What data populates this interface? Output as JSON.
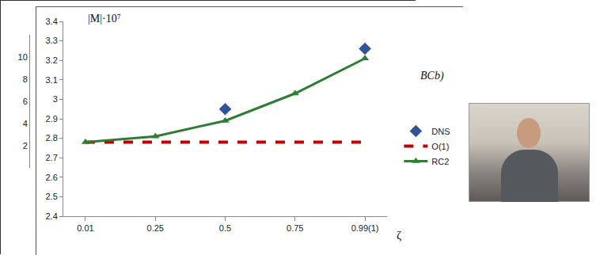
{
  "chart_data": [
    {
      "type": "line",
      "xlabel": "ζ",
      "ylabel": "|M|·10⁷",
      "annotations": [
        "BCb)"
      ],
      "categories": [
        "0.01",
        "0.25",
        "0.5",
        "0.75",
        "0.99(1)"
      ],
      "series": [
        {
          "name": "DNS",
          "color": "#2f5597",
          "marker": "diamond",
          "values": [
            null,
            null,
            2.95,
            null,
            3.26
          ]
        },
        {
          "name": "O(1)",
          "color": "#c00000",
          "line_style": "dashed",
          "values": [
            2.78,
            2.78,
            2.78,
            2.78,
            2.78
          ]
        },
        {
          "name": "RC2",
          "color": "#2e7d32",
          "marker": "triangle",
          "line_style": "solid",
          "values": [
            2.78,
            2.81,
            2.89,
            3.03,
            3.21
          ]
        }
      ],
      "ylim": [
        2.4,
        3.4
      ],
      "yticks": [
        2.4,
        2.5,
        2.6,
        2.7,
        2.8,
        2.9,
        3,
        3.1,
        3.2,
        3.3,
        3.4
      ],
      "grid": false,
      "legend": "right"
    },
    {
      "type": "line",
      "ylim": [
        0,
        12
      ],
      "yticks": [
        2,
        4,
        6,
        8,
        10
      ],
      "tick_labels": "y"
    }
  ]
}
